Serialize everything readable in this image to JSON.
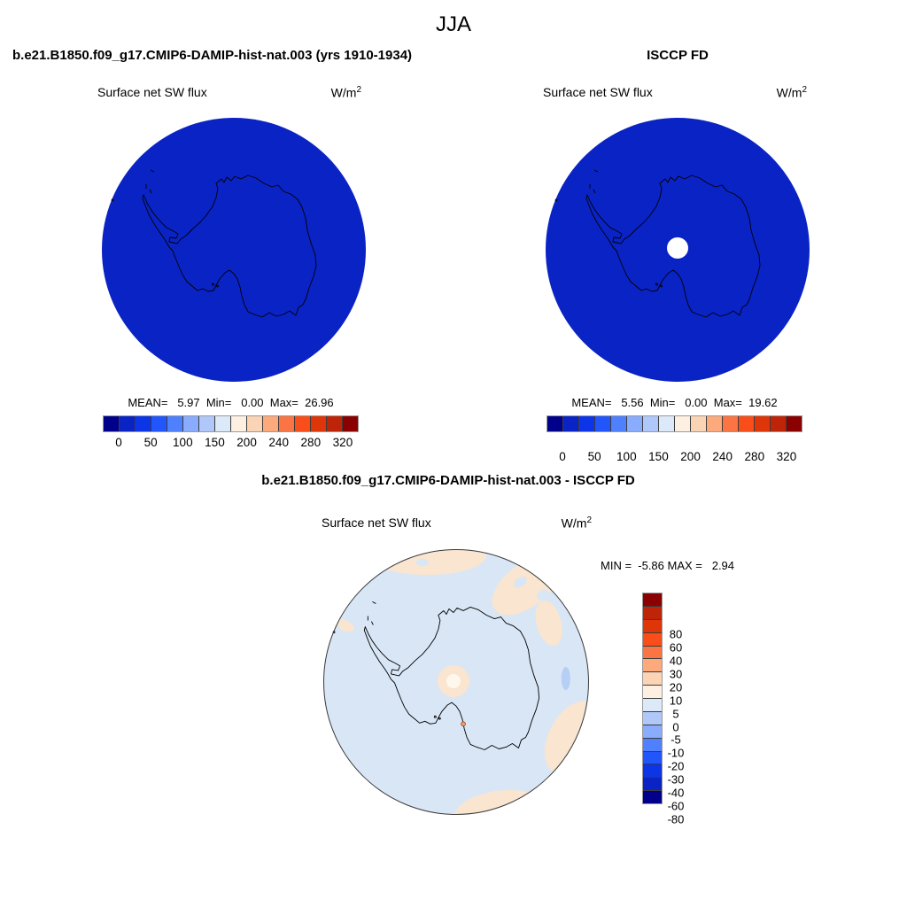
{
  "title": "JJA",
  "colors": {
    "flux_field": "#0A23C4",
    "flux_field_edge": "#000a70",
    "coastline": "#000000",
    "missing_white": "#ffffff",
    "diff_base": "#D8E6F6",
    "diff_pos": "#F9E5D0",
    "diff_core": "#FFF6EC",
    "diff_neg2": "#B7CFF6",
    "diff_dot": "#F4A067",
    "diff_outline": "#3a3a3a"
  },
  "flux_palette": [
    "#00008B",
    "#0A23C4",
    "#0B35E6",
    "#2256FA",
    "#4F80FD",
    "#8AACFD",
    "#AFC8F9",
    "#DCE9F8",
    "#FDF0E2",
    "#FBD3B5",
    "#FCA97C",
    "#FB7443",
    "#FA4E1A",
    "#DE3509",
    "#BE2408",
    "#8B0000"
  ],
  "panel_model": {
    "title": "b.e21.B1850.f09_g17.CMIP6-DAMIP-hist-nat.003 (yrs 1910-1934)",
    "field_label": "Surface net SW flux",
    "units_base": "W/m",
    "units_exp": "2",
    "stats_line": "MEAN=   5.97  Min=   0.00  Max=  26.96",
    "cbar_ticks": [
      "0",
      "50",
      "100",
      "150",
      "200",
      "240",
      "280",
      "320"
    ]
  },
  "panel_obs": {
    "title": "ISCCP FD",
    "field_label": "Surface net SW flux",
    "units_base": "W/m",
    "units_exp": "2",
    "stats_line": "MEAN=   5.56  Min=   0.00  Max=  19.62",
    "cbar_ticks": [
      "0",
      "50",
      "100",
      "150",
      "200",
      "240",
      "280",
      "320"
    ]
  },
  "panel_diff": {
    "title": "b.e21.B1850.f09_g17.CMIP6-DAMIP-hist-nat.003 - ISCCP FD",
    "field_label": "Surface net SW flux",
    "units_base": "W/m",
    "units_exp": "2",
    "stats_line": "MIN =  -5.86 MAX =   2.94",
    "cbar_labels": [
      "80",
      "60",
      "40",
      "30",
      "20",
      "10",
      "5",
      "0",
      "-5",
      "-10",
      "-20",
      "-30",
      "-40",
      "-60",
      "-80"
    ]
  },
  "chart_data": {
    "type": "heatmap",
    "subtype": "south-polar-stereographic map panels (NCL-style model vs obs diagnostic)",
    "season_title": "JJA",
    "variable": "Surface net SW flux",
    "units": "W/m^2",
    "palette_blue_to_red": [
      "#00008B",
      "#0A23C4",
      "#0B35E6",
      "#2256FA",
      "#4F80FD",
      "#8AACFD",
      "#AFC8F9",
      "#DCE9F8",
      "#FDF0E2",
      "#FBD3B5",
      "#FCA97C",
      "#FB7443",
      "#FA4E1A",
      "#DE3509",
      "#BE2408",
      "#8B0000"
    ],
    "panels": [
      {
        "name": "b.e21.B1850.f09_g17.CMIP6-DAMIP-hist-nat.003 (yrs 1910-1934)",
        "mean": 5.97,
        "min": 0.0,
        "max": 26.96,
        "levels": [
          0,
          25,
          50,
          75,
          100,
          125,
          150,
          175,
          200,
          220,
          240,
          260,
          280,
          300,
          320
        ],
        "labeled_ticks": [
          0,
          50,
          100,
          150,
          200,
          240,
          280,
          320
        ],
        "colorbar": "horizontal",
        "description": "Uniform dark-blue field (all values ~0-27 W/m^2, lowest bins) over Antarctica polar map with black coastline"
      },
      {
        "name": "ISCCP FD",
        "mean": 5.56,
        "min": 0.0,
        "max": 19.62,
        "levels": [
          0,
          25,
          50,
          75,
          100,
          125,
          150,
          175,
          200,
          220,
          240,
          260,
          280,
          300,
          320
        ],
        "labeled_ticks": [
          0,
          50,
          100,
          150,
          200,
          240,
          280,
          320
        ],
        "colorbar": "horizontal",
        "description": "Uniform dark-blue field with small white missing-data circle at the pole"
      },
      {
        "name": "b.e21.B1850.f09_g17.CMIP6-DAMIP-hist-nat.003 - ISCCP FD",
        "min": -5.86,
        "max": 2.94,
        "levels": [
          -80,
          -60,
          -40,
          -30,
          -20,
          -10,
          -5,
          0,
          5,
          10,
          20,
          30,
          40,
          60,
          80
        ],
        "colorbar": "vertical",
        "description": "Difference map: mostly pale blue (-5 to 0) with pale-orange (0 to 5) patches along the map rim, a pale-orange ring with near-white core at the pole, one small deeper-blue (-10 to -5) blob at right, one tiny orange spot near the coast"
      }
    ]
  }
}
